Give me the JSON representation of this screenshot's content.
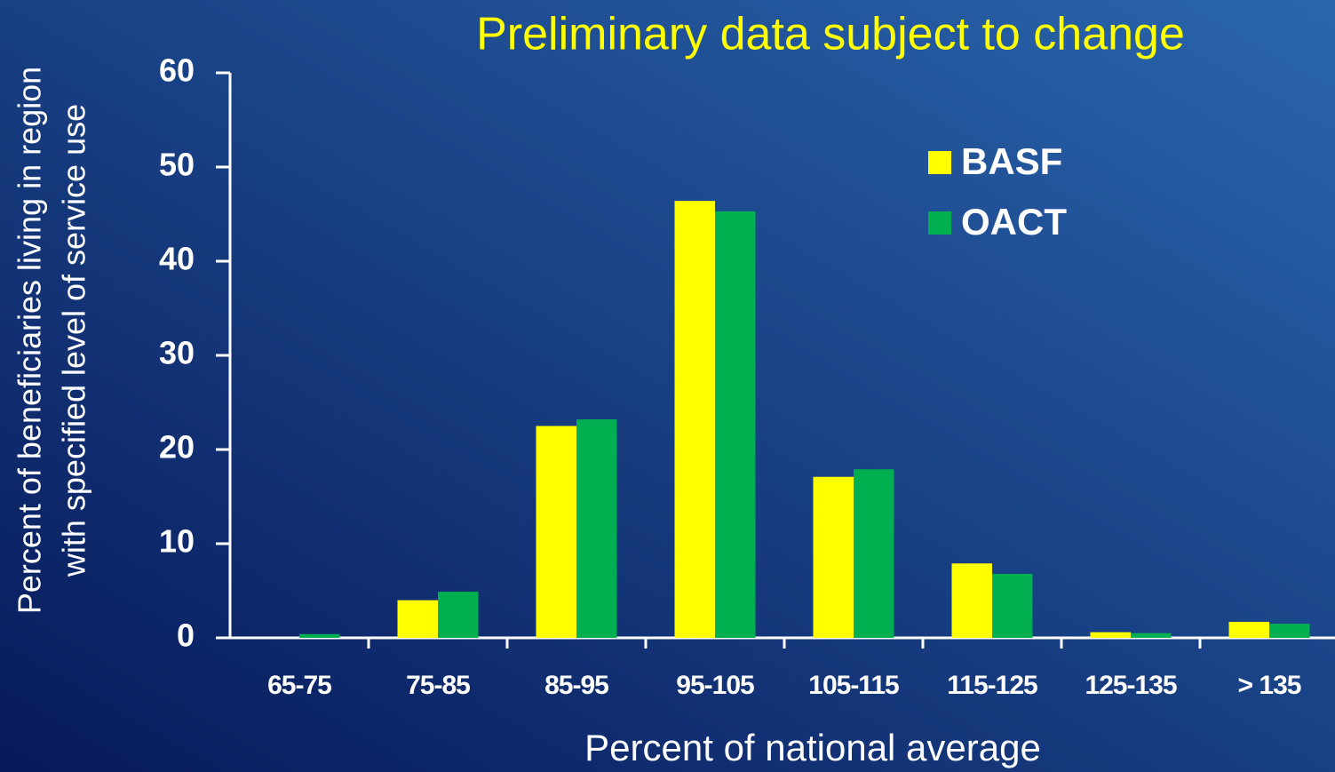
{
  "chart_data": {
    "type": "bar",
    "title": "Preliminary data subject to change",
    "x_label": "Percent of national average",
    "y_label": [
      "Percent of beneficiaries living in region",
      "with specified level of service use"
    ],
    "categories": [
      "65-75",
      "75-85",
      "85-95",
      "95-105",
      "105-115",
      "115-125",
      "125-135",
      "> 135"
    ],
    "series": [
      {
        "name": "BASF",
        "color": "#ffff00",
        "values": [
          0,
          4.0,
          22.5,
          46.4,
          17.1,
          7.9,
          0.6,
          1.7
        ]
      },
      {
        "name": "OACT",
        "color": "#00b050",
        "values": [
          0.4,
          4.9,
          23.2,
          45.3,
          17.9,
          6.8,
          0.5,
          1.5
        ]
      }
    ],
    "ylim": [
      0,
      60
    ],
    "yticks": [
      0,
      10,
      20,
      30,
      40,
      50,
      60
    ],
    "legend": "upper right"
  }
}
